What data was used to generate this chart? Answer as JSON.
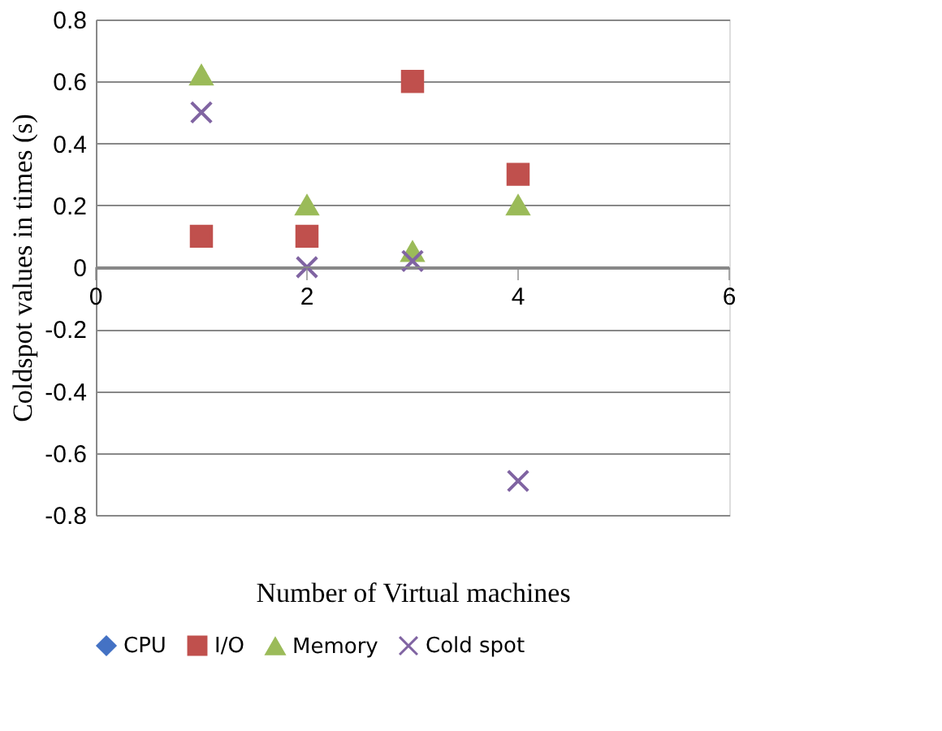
{
  "chart_data": {
    "type": "scatter",
    "xlabel": "Number of Virtual machines",
    "ylabel": "Coldspot values in times (s)",
    "x": [
      1,
      2,
      3,
      4
    ],
    "xlim": [
      0,
      6
    ],
    "xticks": [
      0,
      2,
      4,
      6
    ],
    "ylim": [
      -0.8,
      0.8
    ],
    "yticks": [
      -0.8,
      -0.6,
      -0.4,
      -0.2,
      0,
      0.2,
      0.4,
      0.6,
      0.8
    ],
    "grid": "y",
    "legend": "bottom",
    "series": [
      {
        "name": "CPU",
        "color": "#4472c4",
        "marker": "diamond",
        "values": [
          null,
          null,
          null,
          null
        ]
      },
      {
        "name": "I/O",
        "color": "#c0504d",
        "marker": "square",
        "values": [
          0.1,
          0.1,
          0.6,
          0.3
        ]
      },
      {
        "name": "Memory",
        "color": "#9bbb59",
        "marker": "triangle",
        "values": [
          0.62,
          0.2,
          0.05,
          0.2
        ]
      },
      {
        "name": "Cold spot",
        "color": "#8064a2",
        "marker": "cross",
        "values": [
          0.5,
          0.0,
          0.02,
          -0.69
        ]
      }
    ]
  }
}
